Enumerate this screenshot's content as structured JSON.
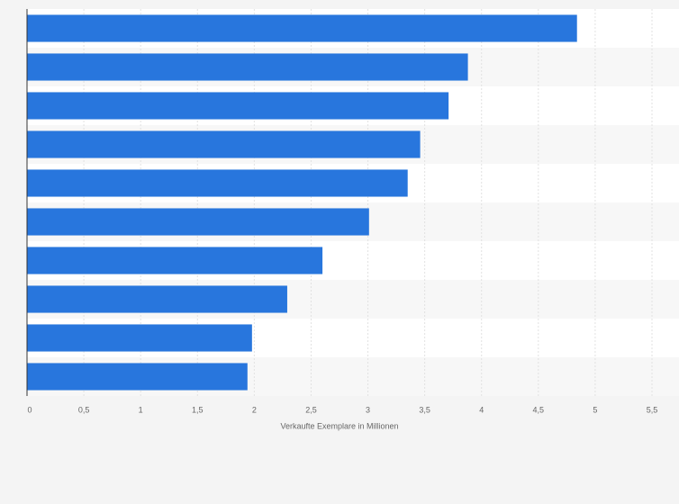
{
  "chart_data": {
    "type": "barh",
    "x_label": "Verkaufte Exemplare in Millionen",
    "categories": [
      null,
      null,
      null,
      null,
      null,
      null,
      null,
      null,
      null,
      null
    ],
    "values": [
      4.84,
      3.88,
      3.71,
      3.46,
      3.35,
      3.01,
      2.6,
      2.29,
      1.98,
      1.94
    ],
    "color": "#2876dd",
    "xlim": [
      0,
      5.5
    ],
    "xticks": [
      0,
      {
        "value": 0.5,
        "label": "0,5"
      },
      1,
      {
        "value": 1.5,
        "label": "1,5"
      },
      2,
      {
        "value": 2.5,
        "label": "2,5"
      },
      3,
      {
        "value": 3.5,
        "label": "3,5"
      },
      4,
      {
        "value": 4.5,
        "label": "4,5"
      },
      5,
      {
        "value": 5.5,
        "label": "5,5"
      }
    ],
    "grid": true
  }
}
